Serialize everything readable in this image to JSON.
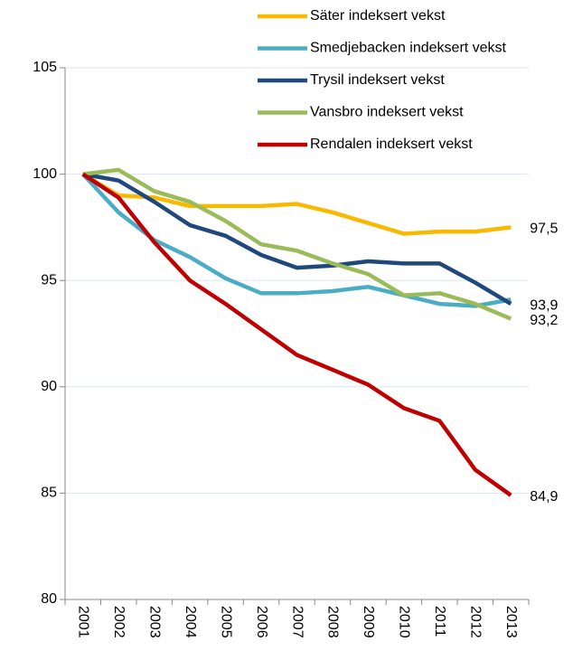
{
  "chart_data": {
    "type": "line",
    "categories": [
      "2001",
      "2002",
      "2003",
      "2004",
      "2005",
      "2006",
      "2007",
      "2008",
      "2009",
      "2010",
      "2011",
      "2012",
      "2013"
    ],
    "series": [
      {
        "name": "Säter indeksert vekst",
        "color": "#f9b900",
        "values": [
          100,
          99.0,
          98.9,
          98.5,
          98.5,
          98.5,
          98.6,
          98.2,
          97.7,
          97.2,
          97.3,
          97.3,
          97.5
        ],
        "value_labels": [
          null,
          null,
          null,
          null,
          null,
          null,
          null,
          null,
          null,
          null,
          null,
          null,
          "97,5"
        ]
      },
      {
        "name": "Smedjebacken indeksert vekst",
        "color": "#4bacc6",
        "values": [
          100,
          98.2,
          96.9,
          96.1,
          95.1,
          94.4,
          94.4,
          94.5,
          94.7,
          94.3,
          93.9,
          93.8,
          94.1
        ]
      },
      {
        "name": "Trysil indeksert vekst",
        "color": "#1f497d",
        "values": [
          100,
          99.7,
          98.7,
          97.6,
          97.1,
          96.2,
          95.6,
          95.7,
          95.9,
          95.8,
          95.8,
          94.9,
          93.9
        ],
        "value_labels": [
          null,
          null,
          null,
          null,
          null,
          null,
          null,
          null,
          null,
          null,
          null,
          null,
          "93,9"
        ]
      },
      {
        "name": "Vansbro indeksert vekst",
        "color": "#9bbb59",
        "values": [
          100,
          100.2,
          99.2,
          98.7,
          97.8,
          96.7,
          96.4,
          95.8,
          95.3,
          94.3,
          94.4,
          93.9,
          93.2
        ],
        "value_labels": [
          null,
          null,
          null,
          null,
          null,
          null,
          null,
          null,
          null,
          null,
          null,
          null,
          "93,2"
        ]
      },
      {
        "name": "Rendalen indeksert vekst",
        "color": "#c00000",
        "values": [
          100,
          98.9,
          96.8,
          95.0,
          93.9,
          92.7,
          91.5,
          90.8,
          90.1,
          89.0,
          88.4,
          86.1,
          84.9
        ],
        "value_labels": [
          null,
          null,
          null,
          null,
          null,
          null,
          null,
          null,
          null,
          null,
          null,
          null,
          "84,9"
        ]
      }
    ],
    "ylim": [
      80,
      105
    ],
    "yticks": [
      80,
      85,
      90,
      95,
      100,
      105
    ],
    "grid": true
  }
}
